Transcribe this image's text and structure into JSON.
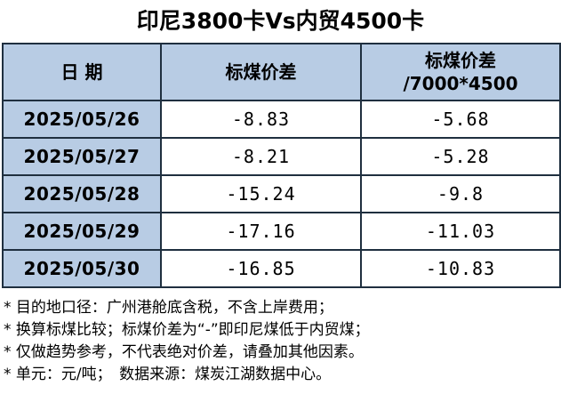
{
  "title": "印尼3800卡Vs内贸4500卡",
  "table": {
    "header": [
      "日 期",
      "标煤价差",
      [
        "标煤价差",
        "/7000*4500"
      ]
    ],
    "rows": [
      [
        "2025/05/26",
        "-8.83",
        "-5.68"
      ],
      [
        "2025/05/27",
        "-8.21",
        "-5.28"
      ],
      [
        "2025/05/28",
        "-15.24",
        "-9.8"
      ],
      [
        "2025/05/29",
        "-17.16",
        "-11.03"
      ],
      [
        "2025/05/30",
        "-16.85",
        "-10.83"
      ]
    ]
  },
  "notes": [
    "* 目的地口径：广州港舱底含税，不含上岸费用；",
    "* 换算标煤比较；标煤价差为“-”即印尼煤低于内贸煤；",
    "* 仅做趋势参考，不代表绝对价差，请叠加其他因素。",
    "* 单元：元/吨；　数据来源：煤炭江湖数据中心。"
  ]
}
